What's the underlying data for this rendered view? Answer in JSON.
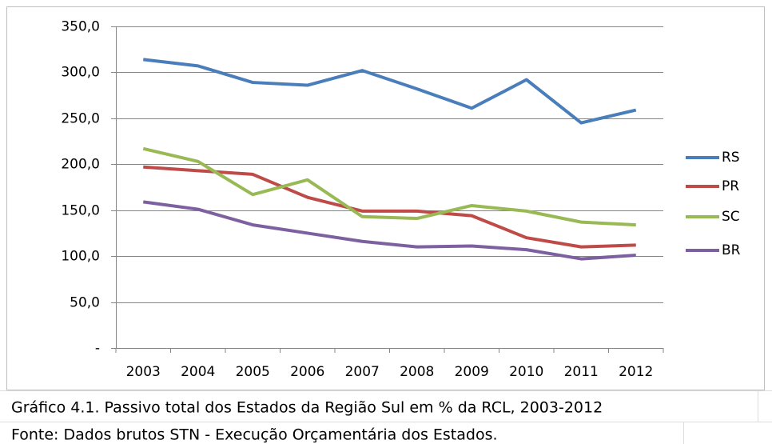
{
  "chart_data": {
    "type": "line",
    "categories": [
      "2003",
      "2004",
      "2005",
      "2006",
      "2007",
      "2008",
      "2009",
      "2010",
      "2011",
      "2012"
    ],
    "series": [
      {
        "name": "RS",
        "color": "#4a7ebb",
        "values": [
          314,
          307,
          289,
          286,
          302,
          282,
          261,
          292,
          245,
          259
        ]
      },
      {
        "name": "PR",
        "color": "#be4b48",
        "values": [
          197,
          193,
          189,
          164,
          149,
          149,
          144,
          120,
          110,
          112
        ]
      },
      {
        "name": "SC",
        "color": "#98b954",
        "values": [
          217,
          203,
          167,
          183,
          143,
          141,
          155,
          149,
          137,
          134
        ]
      },
      {
        "name": "BR",
        "color": "#7d60a0",
        "values": [
          159,
          151,
          134,
          125,
          116,
          110,
          111,
          107,
          97,
          101
        ]
      }
    ],
    "ylim": [
      0,
      350
    ],
    "yticks": [
      {
        "value": 0,
        "label": "-"
      },
      {
        "value": 50,
        "label": "50,0"
      },
      {
        "value": 100,
        "label": "100,0"
      },
      {
        "value": 150,
        "label": "150,0"
      },
      {
        "value": 200,
        "label": "200,0"
      },
      {
        "value": 250,
        "label": "250,0"
      },
      {
        "value": 300,
        "label": "300,0"
      },
      {
        "value": 350,
        "label": "350,0"
      }
    ],
    "grid": true,
    "legend": "right"
  },
  "captions": {
    "title": "Gráfico 4.1.  Passivo total dos Estados da Região Sul em % da RCL, 2003-2012",
    "source": "Fonte: Dados brutos STN - Execução Orçamentária dos Estados."
  }
}
